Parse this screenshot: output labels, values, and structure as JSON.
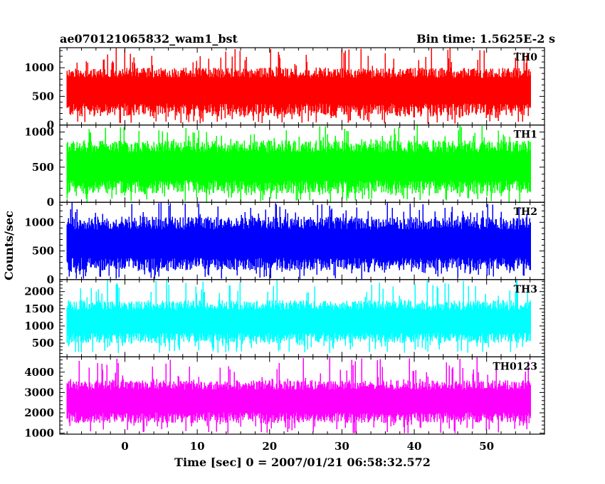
{
  "header": {
    "left_title": "ae070121065832_wam1_bst",
    "right_title": "Bin time: 1.5625E-2 s"
  },
  "chart_data": {
    "type": "line",
    "title": "ae070121065832_wam1_bst",
    "subtitle": "Bin time: 1.5625E-2 s",
    "xlabel": "Time [sec] 0 = 2007/01/21 06:58:32.572",
    "ylabel": "Counts/sec",
    "xlim": [
      -9,
      58
    ],
    "x_ticks": [
      0,
      10,
      20,
      30,
      40,
      50
    ],
    "data_range_x": [
      -8,
      56
    ],
    "bin_time_s": 0.015625,
    "grid": false,
    "panels": [
      {
        "name": "TH0",
        "color": "#ff0000",
        "ylim": [
          0,
          1350
        ],
        "y_ticks": [
          0,
          500,
          1000
        ],
        "mean": 600,
        "envelope_low": 150,
        "envelope_high": 1000,
        "spike_min": 20,
        "spike_max": 1350
      },
      {
        "name": "TH1",
        "color": "#00ff00",
        "ylim": [
          0,
          1100
        ],
        "y_ticks": [
          0,
          500,
          1000
        ],
        "mean": 500,
        "envelope_low": 120,
        "envelope_high": 880,
        "spike_min": 0,
        "spike_max": 1100
      },
      {
        "name": "TH2",
        "color": "#0000ff",
        "ylim": [
          0,
          1350
        ],
        "y_ticks": [
          0,
          500,
          1000
        ],
        "mean": 600,
        "envelope_low": 160,
        "envelope_high": 1100,
        "spike_min": 0,
        "spike_max": 1350
      },
      {
        "name": "TH3",
        "color": "#00ffff",
        "ylim": [
          100,
          2350
        ],
        "y_ticks": [
          500,
          1000,
          1500,
          2000
        ],
        "mean": 1100,
        "envelope_low": 500,
        "envelope_high": 1750,
        "spike_min": 200,
        "spike_max": 2350
      },
      {
        "name": "TH0123",
        "color": "#ff00ff",
        "ylim": [
          950,
          4750
        ],
        "y_ticks": [
          1000,
          2000,
          3000,
          4000
        ],
        "mean": 2550,
        "envelope_low": 1500,
        "envelope_high": 3600,
        "spike_min": 1000,
        "spike_max": 4750
      }
    ]
  }
}
